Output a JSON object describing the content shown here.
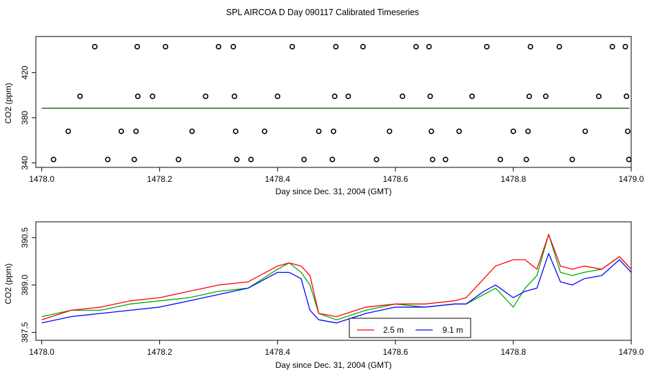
{
  "figure_title": "SPL AIRCOA D  Day 090117  Calibrated Timeseries",
  "chart_data": [
    {
      "type": "scatter",
      "title": "",
      "xlabel": "Day since Dec. 31, 2004 (GMT)",
      "ylabel": "CO2 (ppm)",
      "xlim": [
        1477.99,
        1479.0
      ],
      "ylim": [
        336,
        452
      ],
      "xticks": [
        "1478.0",
        "1478.2",
        "1478.4",
        "1478.6",
        "1478.8",
        "1479.0"
      ],
      "yticks": [
        "340",
        "380",
        "420"
      ],
      "calibration_points": {
        "x": [
          1478.02,
          1478.045,
          1478.065,
          1478.09,
          1478.112,
          1478.135,
          1478.157,
          1478.16,
          1478.163,
          1478.162,
          1478.188,
          1478.21,
          1478.232,
          1478.255,
          1478.278,
          1478.3,
          1478.325,
          1478.327,
          1478.329,
          1478.331,
          1478.355,
          1478.378,
          1478.4,
          1478.425,
          1478.445,
          1478.47,
          1478.493,
          1478.495,
          1478.497,
          1478.499,
          1478.52,
          1478.545,
          1478.568,
          1478.59,
          1478.612,
          1478.635,
          1478.657,
          1478.659,
          1478.661,
          1478.663,
          1478.685,
          1478.708,
          1478.73,
          1478.755,
          1478.778,
          1478.8,
          1478.822,
          1478.825,
          1478.827,
          1478.829,
          1478.855,
          1478.878,
          1478.9,
          1478.922,
          1478.945,
          1478.968,
          1478.99,
          1478.992,
          1478.994,
          1478.996
        ],
        "y": [
          343,
          368,
          399,
          443,
          343,
          368,
          343,
          368,
          399,
          443,
          399,
          443,
          343,
          368,
          399,
          443,
          443,
          399,
          368,
          343,
          343,
          368,
          399,
          443,
          343,
          368,
          343,
          368,
          399,
          443,
          399,
          443,
          343,
          368,
          399,
          443,
          443,
          399,
          368,
          343,
          343,
          368,
          399,
          443,
          343,
          368,
          343,
          368,
          399,
          443,
          399,
          443,
          343,
          368,
          399,
          443,
          443,
          399,
          368,
          343
        ]
      },
      "series": [
        {
          "name": "2.5 m",
          "color": "#ff0000",
          "level": 388.5
        },
        {
          "name": "9.1 m",
          "color": "#0000ff",
          "level": 388.3
        },
        {
          "name": "",
          "color": "#00aa00",
          "level": 388.4
        }
      ]
    },
    {
      "type": "line",
      "title": "",
      "xlabel": "Day since Dec. 31, 2004 (GMT)",
      "ylabel": "CO2 (ppm)",
      "xlim": [
        1477.99,
        1479.0
      ],
      "ylim": [
        387.25,
        391.0
      ],
      "xticks": [
        "1478.0",
        "1478.2",
        "1478.4",
        "1478.6",
        "1478.8",
        "1479.0"
      ],
      "yticks": [
        "387.5",
        "389.0",
        "390.5"
      ],
      "legend": {
        "position": "bottom-center",
        "entries": [
          "2.5 m",
          "9.1 m"
        ]
      },
      "x": [
        1478.0,
        1478.05,
        1478.1,
        1478.15,
        1478.2,
        1478.25,
        1478.3,
        1478.35,
        1478.4,
        1478.42,
        1478.44,
        1478.455,
        1478.47,
        1478.5,
        1478.55,
        1478.6,
        1478.65,
        1478.7,
        1478.72,
        1478.75,
        1478.77,
        1478.8,
        1478.82,
        1478.84,
        1478.86,
        1478.88,
        1478.9,
        1478.92,
        1478.95,
        1478.98,
        1479.0
      ],
      "series": [
        {
          "name": "2.5 m",
          "color": "#ff0000",
          "values": [
            387.9,
            388.2,
            388.3,
            388.5,
            388.6,
            388.8,
            389.0,
            389.1,
            389.6,
            389.7,
            389.6,
            389.3,
            388.1,
            388.0,
            388.3,
            388.4,
            388.4,
            388.5,
            388.6,
            389.2,
            389.6,
            389.8,
            389.8,
            389.5,
            390.6,
            389.6,
            389.5,
            389.6,
            389.5,
            389.9,
            389.5
          ]
        },
        {
          "name": "9.1 m",
          "color": "#0000ff",
          "values": [
            387.8,
            388.0,
            388.1,
            388.2,
            388.3,
            388.5,
            388.7,
            388.9,
            389.4,
            389.4,
            389.2,
            388.2,
            387.9,
            387.8,
            388.1,
            388.3,
            388.3,
            388.4,
            388.4,
            388.8,
            389.0,
            388.6,
            388.8,
            388.9,
            390.0,
            389.1,
            389.0,
            389.2,
            389.3,
            389.8,
            389.4
          ]
        },
        {
          "name": "",
          "color": "#00aa00",
          "values": [
            388.0,
            388.2,
            388.2,
            388.4,
            388.5,
            388.6,
            388.8,
            388.9,
            389.5,
            389.7,
            389.4,
            389.0,
            388.1,
            387.9,
            388.2,
            388.4,
            388.3,
            388.4,
            388.4,
            388.7,
            388.9,
            388.3,
            388.9,
            389.3,
            390.6,
            389.4,
            389.3,
            389.4,
            389.5,
            389.9,
            389.5
          ]
        }
      ]
    }
  ]
}
